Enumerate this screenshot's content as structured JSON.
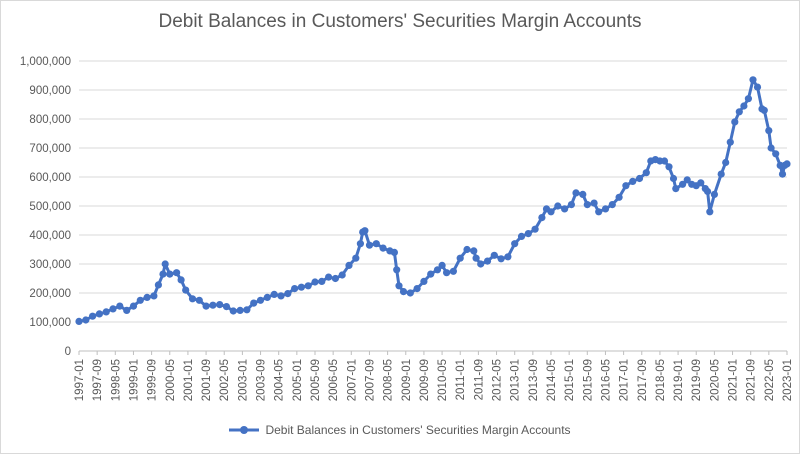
{
  "chart_data": {
    "type": "line",
    "title": "Debit Balances in Customers' Securities Margin Accounts",
    "xlabel": "",
    "ylabel": "",
    "ylim": [
      0,
      1000000
    ],
    "y_ticks": [
      "0",
      "100,000",
      "200,000",
      "300,000",
      "400,000",
      "500,000",
      "600,000",
      "700,000",
      "800,000",
      "900,000",
      "1,000,000"
    ],
    "x_tick_labels": [
      "1997-01",
      "1997-09",
      "1998-05",
      "1999-01",
      "1999-09",
      "2000-05",
      "2001-01",
      "2001-09",
      "2002-05",
      "2003-01",
      "2003-09",
      "2004-05",
      "2005-01",
      "2005-09",
      "2006-05",
      "2007-01",
      "2007-09",
      "2008-05",
      "2009-01",
      "2009-09",
      "2010-05",
      "2011-01",
      "2011-09",
      "2012-05",
      "2013-01",
      "2013-09",
      "2014-05",
      "2015-01",
      "2015-09",
      "2016-05",
      "2017-01",
      "2017-09",
      "2018-05",
      "2019-01",
      "2019-09",
      "2020-05",
      "2021-01",
      "2021-09",
      "2022-05",
      "2023-01"
    ],
    "grid": true,
    "legend_position": "bottom",
    "series": [
      {
        "name": "Debit Balances in Customers' Securities Margin Accounts",
        "color": "#4472c4",
        "points": [
          [
            "1997-01",
            102000
          ],
          [
            "1997-04",
            107000
          ],
          [
            "1997-07",
            120000
          ],
          [
            "1997-10",
            128000
          ],
          [
            "1998-01",
            135000
          ],
          [
            "1998-04",
            145000
          ],
          [
            "1998-07",
            155000
          ],
          [
            "1998-10",
            140000
          ],
          [
            "1999-01",
            155000
          ],
          [
            "1999-04",
            175000
          ],
          [
            "1999-07",
            185000
          ],
          [
            "1999-10",
            190000
          ],
          [
            "1999-12",
            228000
          ],
          [
            "2000-02",
            265000
          ],
          [
            "2000-03",
            300000
          ],
          [
            "2000-05",
            265000
          ],
          [
            "2000-08",
            270000
          ],
          [
            "2000-10",
            245000
          ],
          [
            "2000-12",
            210000
          ],
          [
            "2001-03",
            180000
          ],
          [
            "2001-06",
            175000
          ],
          [
            "2001-09",
            155000
          ],
          [
            "2001-12",
            158000
          ],
          [
            "2002-03",
            160000
          ],
          [
            "2002-06",
            153000
          ],
          [
            "2002-09",
            138000
          ],
          [
            "2002-12",
            140000
          ],
          [
            "2003-03",
            142000
          ],
          [
            "2003-06",
            165000
          ],
          [
            "2003-09",
            175000
          ],
          [
            "2003-12",
            185000
          ],
          [
            "2004-03",
            195000
          ],
          [
            "2004-06",
            190000
          ],
          [
            "2004-09",
            198000
          ],
          [
            "2004-12",
            215000
          ],
          [
            "2005-03",
            220000
          ],
          [
            "2005-06",
            225000
          ],
          [
            "2005-09",
            238000
          ],
          [
            "2005-12",
            240000
          ],
          [
            "2006-03",
            255000
          ],
          [
            "2006-06",
            250000
          ],
          [
            "2006-09",
            262000
          ],
          [
            "2006-12",
            295000
          ],
          [
            "2007-03",
            320000
          ],
          [
            "2007-05",
            370000
          ],
          [
            "2007-06",
            410000
          ],
          [
            "2007-07",
            415000
          ],
          [
            "2007-09",
            365000
          ],
          [
            "2007-12",
            370000
          ],
          [
            "2008-03",
            355000
          ],
          [
            "2008-06",
            345000
          ],
          [
            "2008-08",
            340000
          ],
          [
            "2008-09",
            280000
          ],
          [
            "2008-10",
            225000
          ],
          [
            "2008-12",
            205000
          ],
          [
            "2009-03",
            200000
          ],
          [
            "2009-06",
            215000
          ],
          [
            "2009-09",
            240000
          ],
          [
            "2009-12",
            265000
          ],
          [
            "2010-03",
            280000
          ],
          [
            "2010-05",
            295000
          ],
          [
            "2010-07",
            270000
          ],
          [
            "2010-10",
            275000
          ],
          [
            "2011-01",
            320000
          ],
          [
            "2011-04",
            350000
          ],
          [
            "2011-07",
            345000
          ],
          [
            "2011-08",
            320000
          ],
          [
            "2011-10",
            300000
          ],
          [
            "2012-01",
            310000
          ],
          [
            "2012-04",
            330000
          ],
          [
            "2012-07",
            318000
          ],
          [
            "2012-10",
            325000
          ],
          [
            "2013-01",
            370000
          ],
          [
            "2013-04",
            395000
          ],
          [
            "2013-07",
            405000
          ],
          [
            "2013-10",
            420000
          ],
          [
            "2014-01",
            460000
          ],
          [
            "2014-03",
            490000
          ],
          [
            "2014-05",
            480000
          ],
          [
            "2014-08",
            500000
          ],
          [
            "2014-11",
            490000
          ],
          [
            "2015-02",
            505000
          ],
          [
            "2015-04",
            545000
          ],
          [
            "2015-07",
            540000
          ],
          [
            "2015-09",
            505000
          ],
          [
            "2015-12",
            510000
          ],
          [
            "2016-02",
            480000
          ],
          [
            "2016-05",
            490000
          ],
          [
            "2016-08",
            505000
          ],
          [
            "2016-11",
            530000
          ],
          [
            "2017-02",
            570000
          ],
          [
            "2017-05",
            585000
          ],
          [
            "2017-08",
            595000
          ],
          [
            "2017-11",
            615000
          ],
          [
            "2018-01",
            655000
          ],
          [
            "2018-03",
            660000
          ],
          [
            "2018-05",
            655000
          ],
          [
            "2018-07",
            655000
          ],
          [
            "2018-09",
            635000
          ],
          [
            "2018-11",
            595000
          ],
          [
            "2018-12",
            560000
          ],
          [
            "2019-03",
            575000
          ],
          [
            "2019-05",
            590000
          ],
          [
            "2019-07",
            575000
          ],
          [
            "2019-09",
            570000
          ],
          [
            "2019-11",
            580000
          ],
          [
            "2020-01",
            560000
          ],
          [
            "2020-02",
            550000
          ],
          [
            "2020-03",
            480000
          ],
          [
            "2020-05",
            540000
          ],
          [
            "2020-08",
            610000
          ],
          [
            "2020-10",
            650000
          ],
          [
            "2020-12",
            720000
          ],
          [
            "2021-02",
            790000
          ],
          [
            "2021-04",
            825000
          ],
          [
            "2021-06",
            845000
          ],
          [
            "2021-08",
            870000
          ],
          [
            "2021-10",
            935000
          ],
          [
            "2021-12",
            910000
          ],
          [
            "2022-02",
            835000
          ],
          [
            "2022-03",
            830000
          ],
          [
            "2022-05",
            760000
          ],
          [
            "2022-06",
            700000
          ],
          [
            "2022-08",
            680000
          ],
          [
            "2022-10",
            640000
          ],
          [
            "2022-11",
            610000
          ],
          [
            "2022-12",
            640000
          ],
          [
            "2023-01",
            645000
          ]
        ]
      }
    ]
  }
}
